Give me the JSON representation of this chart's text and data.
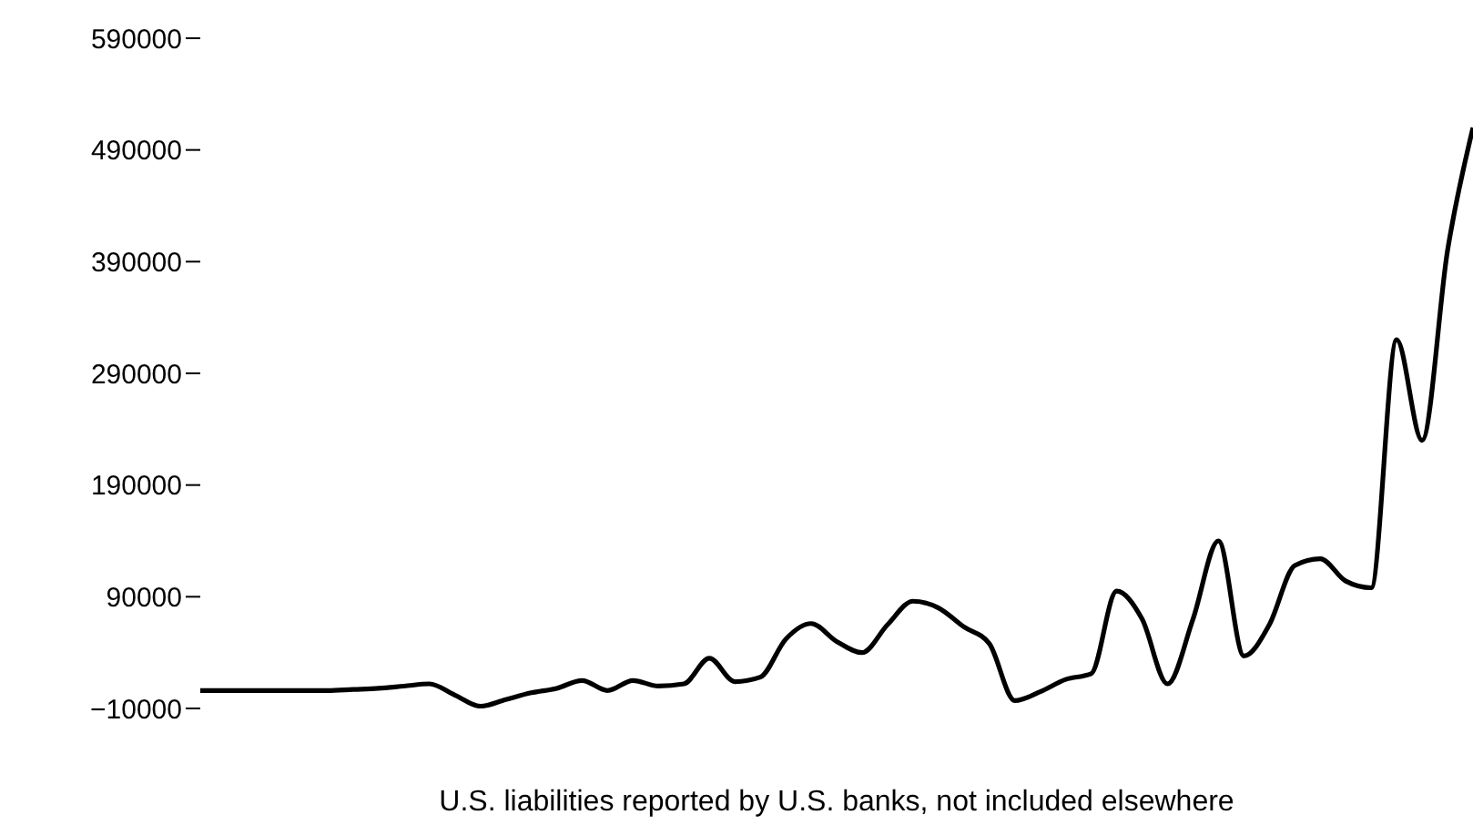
{
  "chart_data": {
    "type": "line",
    "xlabel": "U.S. liabilities reported by U.S. banks, not included elsewhere",
    "categories": [
      null,
      null,
      null,
      null,
      null,
      null,
      null,
      null,
      null,
      null,
      null,
      null,
      null,
      null,
      null,
      null,
      null,
      null,
      null,
      null,
      null,
      null,
      null,
      null,
      null,
      null,
      null,
      null,
      null,
      null,
      null,
      null,
      null,
      null,
      null,
      null,
      null,
      null,
      null,
      null,
      null,
      null,
      null,
      null,
      null,
      null,
      null,
      null,
      null,
      null,
      null
    ],
    "series": [
      {
        "color": "#000000",
        "values": [
          6000,
          6000,
          6000,
          6000,
          6000,
          6000,
          7000,
          8000,
          10000,
          12000,
          2000,
          -8000,
          -2000,
          4000,
          8000,
          15000,
          6000,
          15000,
          10000,
          12000,
          35000,
          14000,
          18000,
          52000,
          66000,
          50000,
          40000,
          65000,
          86000,
          80000,
          63000,
          48000,
          -3000,
          5000,
          16000,
          21000,
          95000,
          70000,
          12000,
          70000,
          140000,
          37000,
          65000,
          118000,
          124000,
          104000,
          98000,
          320000,
          230000,
          400000,
          510000
        ]
      }
    ],
    "ylim": [
      -10000,
      590000
    ],
    "yticks": [
      -10000,
      90000,
      190000,
      290000,
      390000,
      490000,
      590000
    ],
    "grid": false,
    "legend": false,
    "marker": "none",
    "line_style": "solid"
  }
}
